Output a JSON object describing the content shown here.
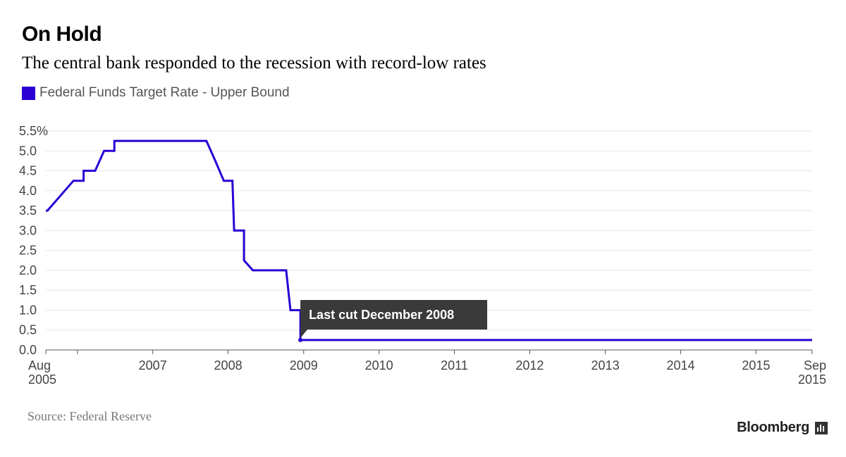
{
  "chart_data": {
    "type": "line",
    "title": "On Hold",
    "subtitle": "The central bank responded to the recession with record-low rates",
    "source": "Source: Federal Reserve",
    "brand": "Bloomberg",
    "series": [
      {
        "name": "Federal Funds Target Rate - Upper Bound",
        "color": "#2A00D5",
        "points": [
          [
            "2005-08-01",
            3.5
          ],
          [
            "2005-08-09",
            3.5
          ],
          [
            "2005-09-20",
            3.75
          ],
          [
            "2005-11-01",
            4.0
          ],
          [
            "2005-12-13",
            4.25
          ],
          [
            "2006-01-31",
            4.25
          ],
          [
            "2006-01-31",
            4.5
          ],
          [
            "2006-03-28",
            4.5
          ],
          [
            "2006-05-10",
            5.0
          ],
          [
            "2006-06-29",
            5.0
          ],
          [
            "2006-06-29",
            5.25
          ],
          [
            "2007-09-18",
            5.25
          ],
          [
            "2007-10-31",
            4.75
          ],
          [
            "2007-12-11",
            4.25
          ],
          [
            "2008-01-22",
            4.25
          ],
          [
            "2008-01-30",
            3.0
          ],
          [
            "2008-03-18",
            3.0
          ],
          [
            "2008-03-18",
            2.25
          ],
          [
            "2008-04-30",
            2.0
          ],
          [
            "2008-10-08",
            2.0
          ],
          [
            "2008-10-29",
            1.0
          ],
          [
            "2008-12-16",
            1.0
          ],
          [
            "2008-12-16",
            0.25
          ],
          [
            "2015-09-30",
            0.25
          ]
        ]
      }
    ],
    "x_range": [
      "2005-08-01",
      "2015-09-30"
    ],
    "x_ticks": [
      {
        "date": "2005-08-01",
        "label": [
          "Aug",
          "2005"
        ]
      },
      {
        "date": "2006-01-01",
        "label": [
          ""
        ]
      },
      {
        "date": "2007-01-01",
        "label": [
          "2007"
        ]
      },
      {
        "date": "2008-01-01",
        "label": [
          "2008"
        ]
      },
      {
        "date": "2009-01-01",
        "label": [
          "2009"
        ]
      },
      {
        "date": "2010-01-01",
        "label": [
          "2010"
        ]
      },
      {
        "date": "2011-01-01",
        "label": [
          "2011"
        ]
      },
      {
        "date": "2012-01-01",
        "label": [
          "2012"
        ]
      },
      {
        "date": "2013-01-01",
        "label": [
          "2013"
        ]
      },
      {
        "date": "2014-01-01",
        "label": [
          "2014"
        ]
      },
      {
        "date": "2015-01-01",
        "label": [
          "2015"
        ]
      },
      {
        "date": "2015-09-30",
        "label": [
          "Sep",
          "2015"
        ]
      }
    ],
    "ylim": [
      0,
      5.5
    ],
    "y_ticks": [
      0,
      0.5,
      1.0,
      1.5,
      2.0,
      2.5,
      3.0,
      3.5,
      4.0,
      4.5,
      5.0,
      5.5
    ],
    "y_tick_labels": [
      "0.0",
      "0.5",
      "1.0",
      "1.5",
      "2.0",
      "2.5",
      "3.0",
      "3.5",
      "4.0",
      "4.5",
      "5.0",
      "5.5%"
    ],
    "annotation": {
      "text": "Last cut December 2008",
      "date": "2008-12-16",
      "value": 0.25
    },
    "grid": true,
    "legend_position": "top-left"
  }
}
